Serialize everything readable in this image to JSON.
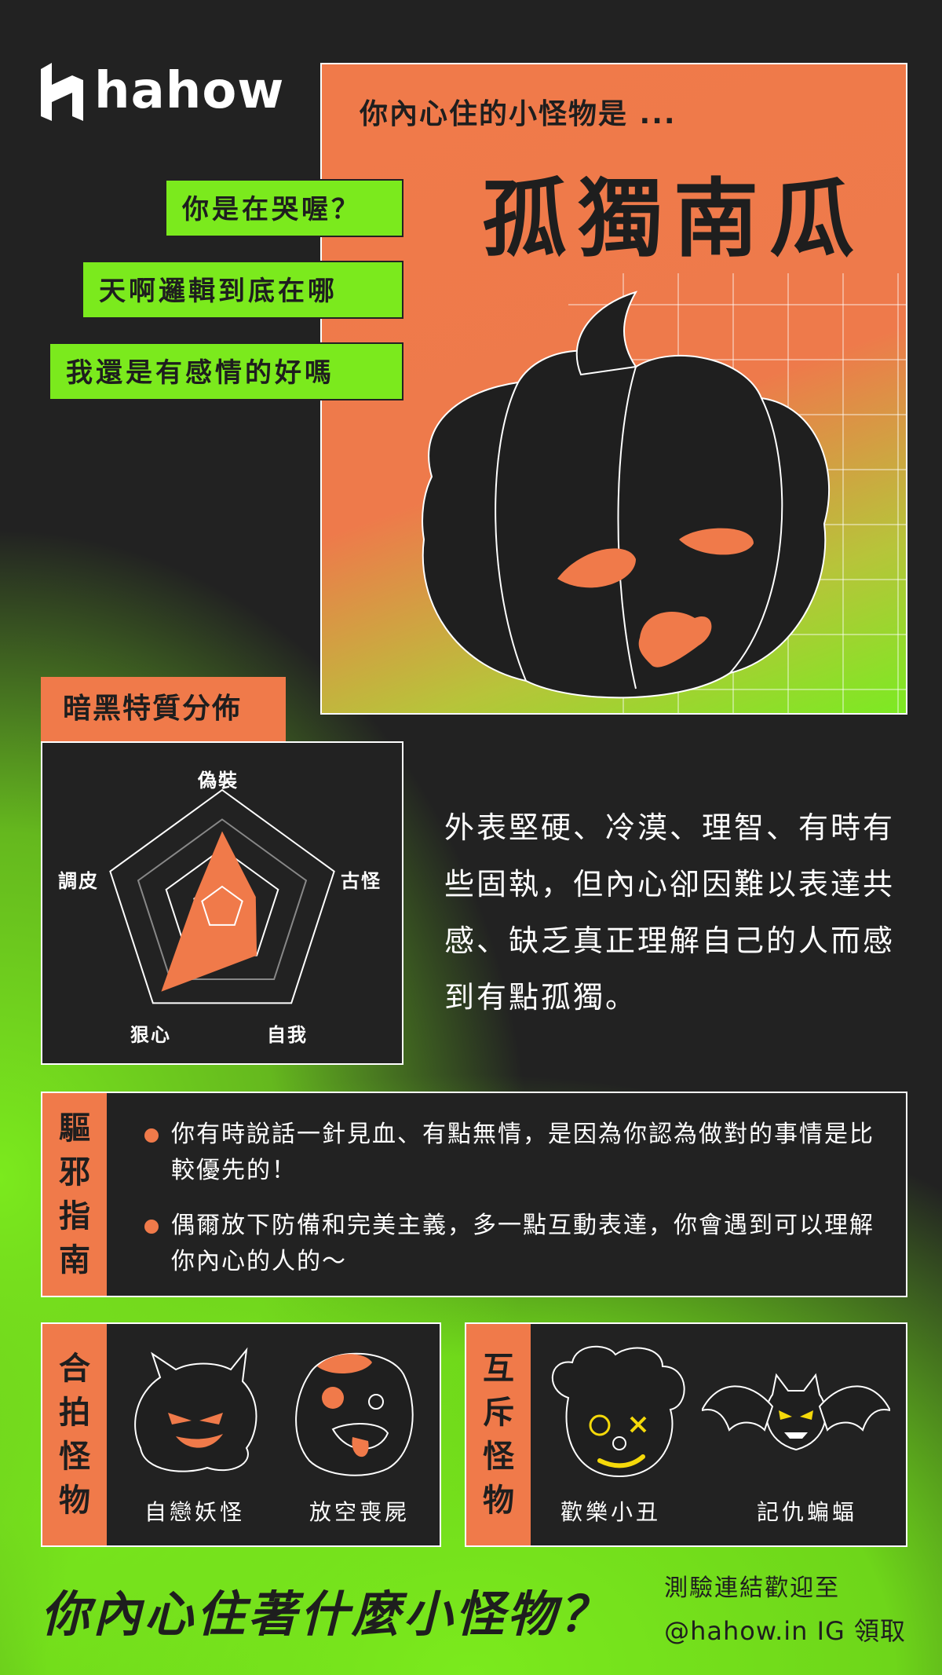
{
  "brand": {
    "logo_text": "hahow"
  },
  "hero": {
    "subtitle": "你內心住的小怪物是 ...",
    "title": "孤獨南瓜"
  },
  "tags": [
    "你是在哭喔？",
    "天啊邏輯到底在哪",
    "我還是有感情的好嗎"
  ],
  "radar": {
    "label": "暗黑特質分佈",
    "axes": [
      "偽裝",
      "古怪",
      "自我",
      "狠心",
      "調皮"
    ],
    "values": [
      0.65,
      0.3,
      0.5,
      0.88,
      0.25
    ]
  },
  "description": "外表堅硬、冷漠、理智、有時有些固執，但內心卻因難以表達共感、缺乏真正理解自己的人而感到有點孤獨。",
  "guide": {
    "label_chars": [
      "驅",
      "邪",
      "指",
      "南"
    ],
    "items": [
      "你有時說話一針見血、有點無情，是因為你認為做對的事情是比較優先的！",
      "偶爾放下防備和完美主義，多一點互動表達，你會遇到可以理解你內心的人的～"
    ]
  },
  "compatible": {
    "label_chars": [
      "合",
      "拍",
      "怪",
      "物"
    ],
    "monsters": [
      "自戀妖怪",
      "放空喪屍"
    ]
  },
  "incompatible": {
    "label_chars": [
      "互",
      "斥",
      "怪",
      "物"
    ],
    "monsters": [
      "歡樂小丑",
      "記仇蝙蝠"
    ]
  },
  "footer": {
    "headline": "你內心住著什麼小怪物？",
    "info_line1": "測驗連結歡迎至",
    "info_line2": "@hahow.in IG 領取"
  },
  "colors": {
    "orange": "#f07a4a",
    "green": "#7bea1d",
    "dark": "#222222"
  }
}
